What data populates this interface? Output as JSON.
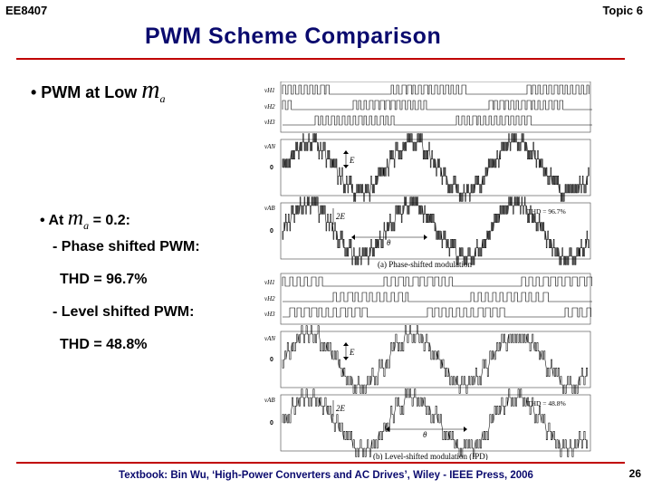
{
  "slide": {
    "course": "EE8407",
    "topic": "Topic 6",
    "title": "PWM Scheme Comparison",
    "bullet1": "• PWM at Low ",
    "bullet1_m": "m",
    "bullet1_sub": "a",
    "bullet2_prefix": "• At ",
    "bullet2_m": "m",
    "bullet2_sub": "a",
    "bullet2_suffix": " = 0.2:",
    "line_psh": "- Phase shifted PWM:",
    "line_psh_thd": "THD = 96.7%",
    "line_lsh": "- Level shifted PWM:",
    "line_lsh_thd": "THD = 48.8%",
    "footer": "Textbook: Bin Wu, ‘High-Power Converters and AC Drives’, Wiley - IEEE Press, 2006",
    "page": "26"
  },
  "figure": {
    "colors": {
      "ink": "#000000",
      "frame": "#444444",
      "accent": "#c00000",
      "title": "#0a0a6e"
    },
    "top": {
      "labels": [
        "vH1",
        "vH2",
        "vH3",
        "vAN",
        "0",
        "vAB",
        "0"
      ],
      "e_label": "E",
      "two_e_label": "2E",
      "theta_label": "θ",
      "thd": "THD = 96.7%",
      "caption": "(a) Phase-shifted modulation"
    },
    "bottom": {
      "labels": [
        "vH1",
        "vH2",
        "vH3",
        "vAN",
        "0",
        "vAB",
        "0"
      ],
      "e_label": "E",
      "two_e_label": "2E",
      "theta_label": "θ",
      "thd": "THD = 48.8%",
      "caption": "(b) Level-shifted modulation (IPD)"
    }
  }
}
